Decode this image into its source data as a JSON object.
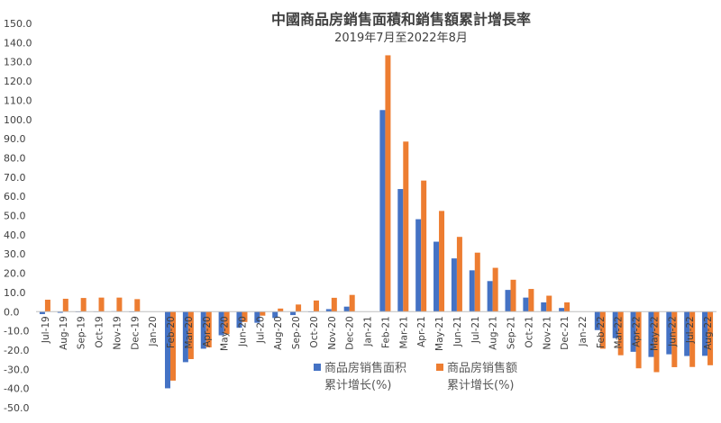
{
  "chart_data": {
    "type": "bar",
    "title": "中國商品房銷售面積和銷售額累計增長率",
    "subtitle": "2019年7月至2022年8月",
    "ylim": [
      -50,
      150
    ],
    "ytick_step": 10,
    "grid": false,
    "legend_position": "bottom-center",
    "categories": [
      "Jul-19",
      "Aug-19",
      "Sep-19",
      "Oct-19",
      "Nov-19",
      "Dec-19",
      "Jan-20",
      "Feb-20",
      "Mar-20",
      "Apr-20",
      "May-20",
      "Jun-20",
      "Jul-20",
      "Aug-20",
      "Sep-20",
      "Oct-20",
      "Nov-20",
      "Dec-20",
      "Jan-21",
      "Feb-21",
      "Mar-21",
      "Apr-21",
      "May-21",
      "Jun-21",
      "Jul-21",
      "Aug-21",
      "Sep-21",
      "Oct-21",
      "Nov-21",
      "Dec-21",
      "Jan-22",
      "Feb-22",
      "Mar-22",
      "Apr-22",
      "May-22",
      "Jun-22",
      "Jul-22",
      "Aug-22"
    ],
    "series": [
      {
        "name": "商品房销售面积累计增长(%)",
        "color": "#4472C4",
        "values": [
          -1.3,
          -0.6,
          -0.2,
          0.1,
          0.2,
          -0.1,
          null,
          -39.9,
          -26.3,
          -19.3,
          -12.3,
          -8.4,
          -5.8,
          -3.3,
          -1.8,
          0.0,
          1.3,
          2.6,
          null,
          104.9,
          63.8,
          48.1,
          36.4,
          27.7,
          21.5,
          15.9,
          11.3,
          7.3,
          4.8,
          1.9,
          null,
          -9.6,
          -13.8,
          -20.9,
          -23.6,
          -22.2,
          -23.1,
          -23.0
        ]
      },
      {
        "name": "商品房销售额累计增长(%)",
        "color": "#ED7D31",
        "values": [
          6.2,
          6.7,
          7.1,
          7.3,
          7.3,
          6.5,
          null,
          -35.9,
          -24.7,
          -18.6,
          -11.6,
          -5.4,
          -2.1,
          1.6,
          3.7,
          5.8,
          7.2,
          8.7,
          null,
          133.4,
          88.5,
          68.2,
          52.4,
          38.9,
          30.7,
          22.8,
          16.6,
          11.8,
          8.3,
          4.8,
          null,
          -19.3,
          -22.7,
          -29.5,
          -31.5,
          -28.9,
          -28.8,
          -27.9
        ]
      }
    ]
  }
}
